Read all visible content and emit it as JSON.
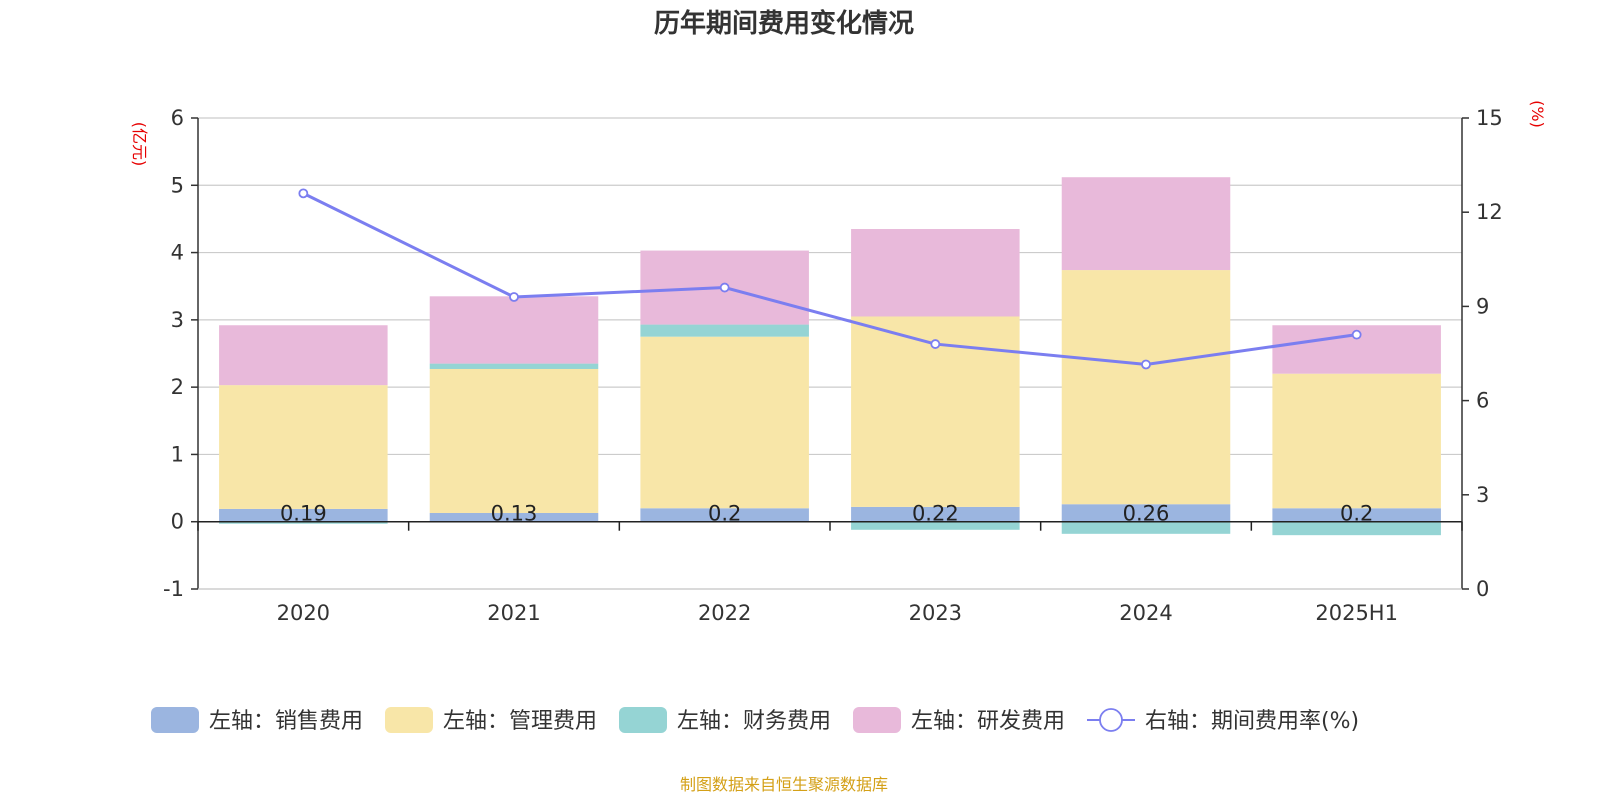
{
  "chart_data": {
    "type": "bar",
    "title": "历年期间费用变化情况",
    "categories": [
      "2020",
      "2021",
      "2022",
      "2023",
      "2024",
      "2025H1"
    ],
    "left_axis": {
      "unit": "(亿元)",
      "min": -1,
      "max": 6,
      "ticks": [
        "-1",
        "0",
        "1",
        "2",
        "3",
        "4",
        "5",
        "6"
      ]
    },
    "right_axis": {
      "unit": "(%)",
      "min": 0,
      "max": 15,
      "ticks": [
        "0",
        "3",
        "6",
        "9",
        "12",
        "15"
      ]
    },
    "series": [
      {
        "name": "左轴：销售费用",
        "type": "bar",
        "axis": "left",
        "color": "#9bb5e0",
        "values": [
          0.19,
          0.13,
          0.2,
          0.22,
          0.26,
          0.2
        ],
        "labels": [
          "0.19",
          "0.13",
          "0.2",
          "0.22",
          "0.26",
          "0.2"
        ]
      },
      {
        "name": "左轴：管理费用",
        "type": "bar",
        "axis": "left",
        "color": "#f8e6a8",
        "values": [
          1.84,
          2.14,
          2.55,
          2.83,
          3.48,
          2.0
        ]
      },
      {
        "name": "左轴：财务费用",
        "type": "bar",
        "axis": "left",
        "color": "#95d4d4",
        "values": [
          -0.03,
          0.08,
          0.18,
          -0.12,
          -0.18,
          -0.2
        ]
      },
      {
        "name": "左轴：研发费用",
        "type": "bar",
        "axis": "left",
        "color": "#e8b9da",
        "values": [
          0.89,
          1.0,
          1.1,
          1.3,
          1.38,
          0.72
        ]
      },
      {
        "name": "右轴：期间费用率(%)",
        "type": "line",
        "axis": "right",
        "color": "#7b7ef0",
        "values": [
          12.6,
          9.3,
          9.6,
          7.8,
          7.15,
          8.1
        ]
      }
    ],
    "grid": true,
    "legend_position": "bottom"
  },
  "source": "制图数据来自恒生聚源数据库"
}
